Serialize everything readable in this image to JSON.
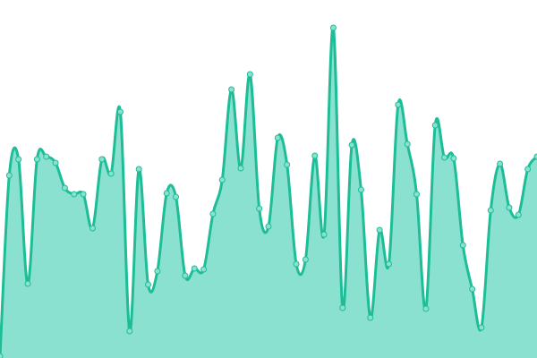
{
  "chart_data": {
    "type": "area",
    "title": "",
    "xlabel": "",
    "ylabel": "",
    "grid": false,
    "axes_visible": false,
    "smooth": true,
    "markers": true,
    "ylim": [
      0,
      400
    ],
    "x": [
      0,
      1,
      2,
      3,
      4,
      5,
      6,
      7,
      8,
      9,
      10,
      11,
      12,
      13,
      14,
      15,
      16,
      17,
      18,
      19,
      20,
      21,
      22,
      23,
      24,
      25,
      26,
      27,
      28,
      29,
      30,
      31,
      32,
      33,
      34,
      35,
      36,
      37,
      38,
      39,
      40,
      41,
      42,
      43,
      44,
      45,
      46,
      47,
      48,
      49,
      50,
      51,
      52,
      53,
      54,
      55,
      56,
      57,
      58
    ],
    "series": [
      {
        "values": [
          2,
          204,
          222,
          83,
          222,
          225,
          218,
          190,
          183,
          183,
          145,
          222,
          206,
          275,
          30,
          211,
          82,
          97,
          184,
          180,
          92,
          100,
          99,
          161,
          199,
          300,
          212,
          317,
          167,
          147,
          246,
          216,
          105,
          110,
          226,
          138,
          369,
          56,
          238,
          188,
          45,
          143,
          105,
          283,
          239,
          183,
          55,
          260,
          224,
          223,
          126,
          77,
          34,
          165,
          217,
          168,
          160,
          211,
          225
        ]
      }
    ],
    "colors": {
      "line": "#1dbd97",
      "fill": "#8be1cf",
      "marker_fill": "#8be1cf",
      "marker_stroke": "#1dbd97"
    }
  }
}
